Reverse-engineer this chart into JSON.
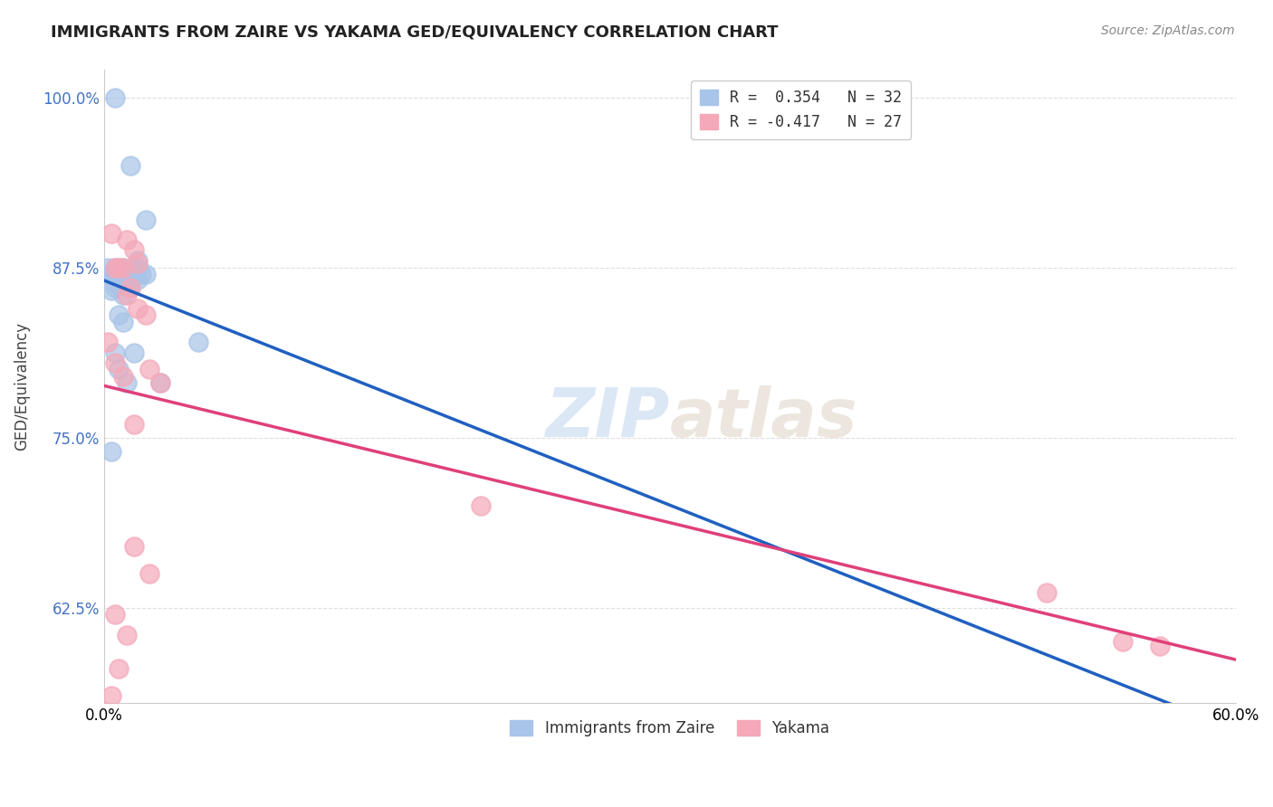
{
  "title": "IMMIGRANTS FROM ZAIRE VS YAKAMA GED/EQUIVALENCY CORRELATION CHART",
  "source": "Source: ZipAtlas.com",
  "ylabel": "GED/Equivalency",
  "ytick_labels": [
    "100.0%",
    "87.5%",
    "75.0%",
    "62.5%"
  ],
  "ytick_values": [
    1.0,
    0.875,
    0.75,
    0.625
  ],
  "xlim": [
    0.0,
    0.6
  ],
  "ylim": [
    0.555,
    1.02
  ],
  "legend_r1": "R =  0.354   N = 32",
  "legend_r2": "R = -0.417   N = 27",
  "zaire_color": "#a8c4e8",
  "yakama_color": "#f4a8b8",
  "zaire_line_color": "#2060c0",
  "yakama_line_color": "#e0407a",
  "watermark_zip": "ZIP",
  "watermark_atlas": "atlas",
  "legend1_label": "Immigrants from Zaire",
  "legend2_label": "Yakama",
  "zaire_x": [
    0.006,
    0.014,
    0.022,
    0.018,
    0.01,
    0.008,
    0.006,
    0.004,
    0.002,
    0.006,
    0.008,
    0.012,
    0.016,
    0.02,
    0.01,
    0.004,
    0.012,
    0.006,
    0.004,
    0.018,
    0.008,
    0.016,
    0.03,
    0.006,
    0.008,
    0.004,
    0.012,
    0.05,
    0.022,
    0.014,
    0.01,
    0.018
  ],
  "zaire_y": [
    1.0,
    0.95,
    0.91,
    0.88,
    0.875,
    0.875,
    0.875,
    0.87,
    0.875,
    0.87,
    0.862,
    0.862,
    0.875,
    0.87,
    0.855,
    0.87,
    0.87,
    0.86,
    0.858,
    0.866,
    0.84,
    0.812,
    0.79,
    0.812,
    0.8,
    0.74,
    0.79,
    0.82,
    0.87,
    0.86,
    0.835,
    0.875
  ],
  "yakama_x": [
    0.004,
    0.012,
    0.016,
    0.018,
    0.008,
    0.006,
    0.01,
    0.014,
    0.012,
    0.018,
    0.022,
    0.016,
    0.002,
    0.006,
    0.024,
    0.01,
    0.03,
    0.2,
    0.016,
    0.024,
    0.006,
    0.012,
    0.008,
    0.004,
    0.5,
    0.54,
    0.56
  ],
  "yakama_y": [
    0.9,
    0.895,
    0.888,
    0.878,
    0.875,
    0.875,
    0.875,
    0.86,
    0.855,
    0.845,
    0.84,
    0.76,
    0.82,
    0.805,
    0.8,
    0.795,
    0.79,
    0.7,
    0.67,
    0.65,
    0.62,
    0.605,
    0.58,
    0.56,
    0.636,
    0.6,
    0.597
  ]
}
